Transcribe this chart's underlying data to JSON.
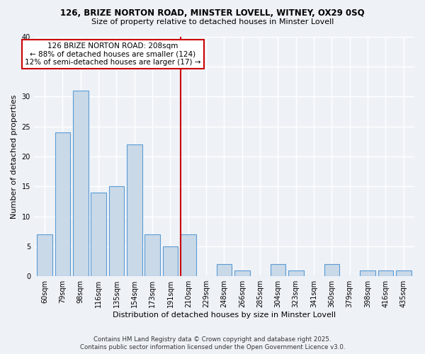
{
  "title1": "126, BRIZE NORTON ROAD, MINSTER LOVELL, WITNEY, OX29 0SQ",
  "title2": "Size of property relative to detached houses in Minster Lovell",
  "xlabel": "Distribution of detached houses by size in Minster Lovell",
  "ylabel": "Number of detached properties",
  "bar_labels": [
    "60sqm",
    "79sqm",
    "98sqm",
    "116sqm",
    "135sqm",
    "154sqm",
    "173sqm",
    "191sqm",
    "210sqm",
    "229sqm",
    "248sqm",
    "266sqm",
    "285sqm",
    "304sqm",
    "323sqm",
    "341sqm",
    "360sqm",
    "379sqm",
    "398sqm",
    "416sqm",
    "435sqm"
  ],
  "bar_values": [
    7,
    24,
    31,
    14,
    15,
    22,
    7,
    5,
    7,
    0,
    2,
    1,
    0,
    2,
    1,
    0,
    2,
    0,
    1,
    1,
    1
  ],
  "bar_color": "#c9d9e8",
  "bar_edge_color": "#5b9bd5",
  "highlight_index": 8,
  "highlight_line_color": "#cc0000",
  "ylim": [
    0,
    40
  ],
  "yticks": [
    0,
    5,
    10,
    15,
    20,
    25,
    30,
    35,
    40
  ],
  "annotation_title": "126 BRIZE NORTON ROAD: 208sqm",
  "annotation_line1": "← 88% of detached houses are smaller (124)",
  "annotation_line2": "12% of semi-detached houses are larger (17) →",
  "annotation_box_color": "#ffffff",
  "annotation_box_edge": "#cc0000",
  "bg_color": "#eef2f7",
  "grid_color": "#ffffff",
  "footer1": "Contains HM Land Registry data © Crown copyright and database right 2025.",
  "footer2": "Contains public sector information licensed under the Open Government Licence v3.0."
}
